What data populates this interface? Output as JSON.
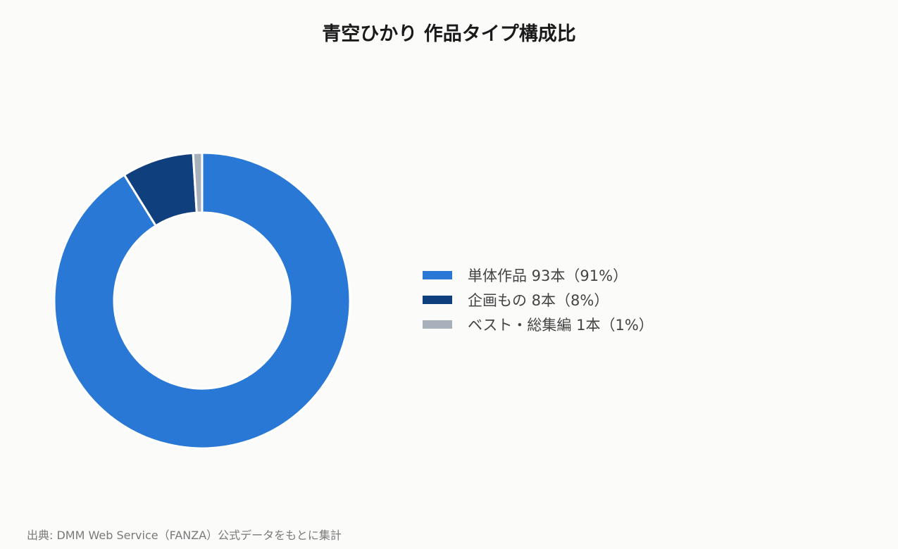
{
  "chart_data": {
    "type": "pie",
    "title": "青空ひかり 作品タイプ構成比",
    "categories": [
      "単体作品",
      "企画もの",
      "ベスト・総集編"
    ],
    "values": [
      93,
      8,
      1
    ],
    "colors": [
      "#2a78d6",
      "#103f7e",
      "#a8b0bc"
    ],
    "legend_labels": [
      "単体作品 93本（91%）",
      "企画もの 8本（8%）",
      "ベスト・総集編 1本（1%）"
    ],
    "legend_position": "right",
    "donut": true
  },
  "source_note": "出典: DMM Web Service（FANZA）公式データをもとに集計"
}
